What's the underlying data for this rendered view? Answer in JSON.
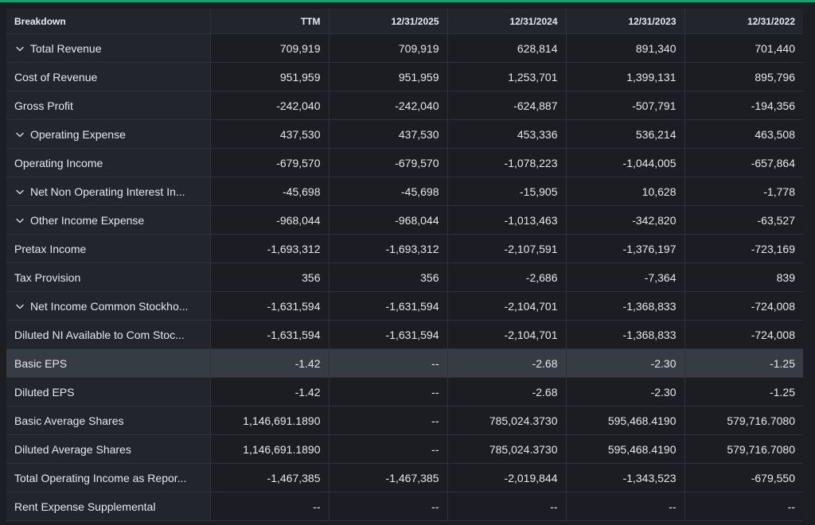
{
  "table": {
    "headers": [
      "Breakdown",
      "TTM",
      "12/31/2025",
      "12/31/2024",
      "12/31/2023",
      "12/31/2022"
    ],
    "rows": [
      {
        "label": "Total Revenue",
        "expandable": true,
        "values": [
          "709,919",
          "709,919",
          "628,814",
          "891,340",
          "701,440"
        ]
      },
      {
        "label": "Cost of Revenue",
        "expandable": false,
        "values": [
          "951,959",
          "951,959",
          "1,253,701",
          "1,399,131",
          "895,796"
        ]
      },
      {
        "label": "Gross Profit",
        "expandable": false,
        "values": [
          "-242,040",
          "-242,040",
          "-624,887",
          "-507,791",
          "-194,356"
        ]
      },
      {
        "label": "Operating Expense",
        "expandable": true,
        "values": [
          "437,530",
          "437,530",
          "453,336",
          "536,214",
          "463,508"
        ]
      },
      {
        "label": "Operating Income",
        "expandable": false,
        "values": [
          "-679,570",
          "-679,570",
          "-1,078,223",
          "-1,044,005",
          "-657,864"
        ]
      },
      {
        "label": "Net Non Operating Interest In...",
        "expandable": true,
        "values": [
          "-45,698",
          "-45,698",
          "-15,905",
          "10,628",
          "-1,778"
        ]
      },
      {
        "label": "Other Income Expense",
        "expandable": true,
        "values": [
          "-968,044",
          "-968,044",
          "-1,013,463",
          "-342,820",
          "-63,527"
        ]
      },
      {
        "label": "Pretax Income",
        "expandable": false,
        "values": [
          "-1,693,312",
          "-1,693,312",
          "-2,107,591",
          "-1,376,197",
          "-723,169"
        ]
      },
      {
        "label": "Tax Provision",
        "expandable": false,
        "values": [
          "356",
          "356",
          "-2,686",
          "-7,364",
          "839"
        ]
      },
      {
        "label": "Net Income Common Stockho...",
        "expandable": true,
        "values": [
          "-1,631,594",
          "-1,631,594",
          "-2,104,701",
          "-1,368,833",
          "-724,008"
        ]
      },
      {
        "label": "Diluted NI Available to Com Stoc...",
        "expandable": false,
        "values": [
          "-1,631,594",
          "-1,631,594",
          "-2,104,701",
          "-1,368,833",
          "-724,008"
        ]
      },
      {
        "label": "Basic EPS",
        "expandable": false,
        "highlighted": true,
        "values": [
          "-1.42",
          "--",
          "-2.68",
          "-2.30",
          "-1.25"
        ]
      },
      {
        "label": "Diluted EPS",
        "expandable": false,
        "values": [
          "-1.42",
          "--",
          "-2.68",
          "-2.30",
          "-1.25"
        ]
      },
      {
        "label": "Basic Average Shares",
        "expandable": false,
        "values": [
          "1,146,691.1890",
          "--",
          "785,024.3730",
          "595,468.4190",
          "579,716.7080"
        ]
      },
      {
        "label": "Diluted Average Shares",
        "expandable": false,
        "values": [
          "1,146,691.1890",
          "--",
          "785,024.3730",
          "595,468.4190",
          "579,716.7080"
        ]
      },
      {
        "label": "Total Operating Income as Repor...",
        "expandable": false,
        "values": [
          "-1,467,385",
          "-1,467,385",
          "-2,019,844",
          "-1,343,523",
          "-679,550"
        ]
      },
      {
        "label": "Rent Expense Supplemental",
        "expandable": false,
        "values": [
          "--",
          "--",
          "--",
          "--",
          "--"
        ]
      }
    ]
  },
  "colors": {
    "accent": "#16a36b",
    "highlight_row": "#363c43"
  },
  "icons": {
    "expand": "chevron-down-icon"
  }
}
